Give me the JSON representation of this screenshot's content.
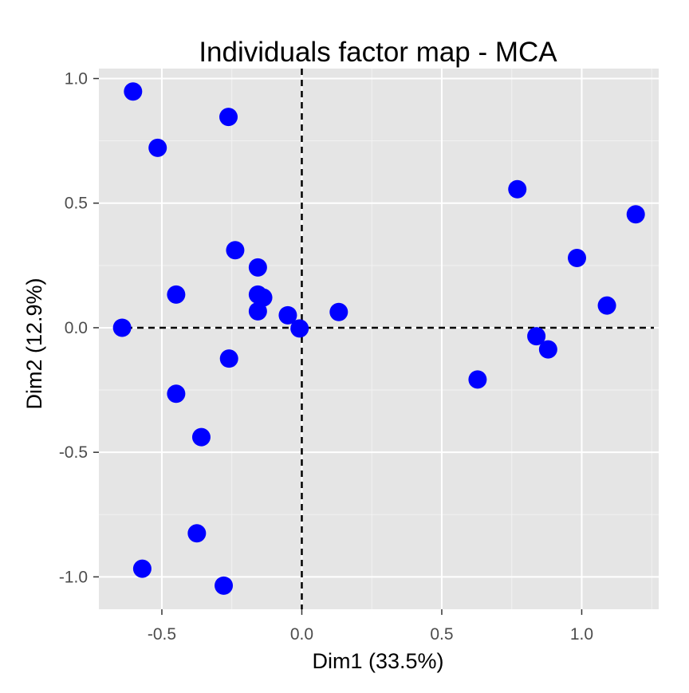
{
  "chart_data": {
    "type": "scatter",
    "title": "Individuals factor map - MCA",
    "xlabel": "Dim1 (33.5%)",
    "ylabel": "Dim2 (12.9%)",
    "xlim": [
      -0.725,
      1.275
    ],
    "ylim": [
      -1.13,
      1.04
    ],
    "x_ticks": [
      -0.5,
      0.0,
      0.5,
      1.0
    ],
    "x_tick_labels": [
      "-0.5",
      "0.0",
      "0.5",
      "1.0"
    ],
    "y_ticks": [
      -1.0,
      -0.5,
      0.0,
      0.5,
      1.0
    ],
    "y_tick_labels": [
      "-1.0",
      "-0.5",
      "0.0",
      "0.5",
      "1.0"
    ],
    "grid": true,
    "reference_lines": {
      "x": 0,
      "y": 0,
      "style": "dashed"
    },
    "colors": {
      "panel_background": "#e5e5e5",
      "grid_major": "#ffffff",
      "grid_minor": "#f2f2f2",
      "point": "#0000ff",
      "reference_line": "#000000"
    },
    "points": [
      {
        "x": -0.603,
        "y": 0.948
      },
      {
        "x": -0.515,
        "y": 0.722
      },
      {
        "x": -0.262,
        "y": 0.846
      },
      {
        "x": -0.238,
        "y": 0.311
      },
      {
        "x": -0.157,
        "y": 0.242
      },
      {
        "x": -0.157,
        "y": 0.133
      },
      {
        "x": -0.138,
        "y": 0.121
      },
      {
        "x": -0.157,
        "y": 0.066
      },
      {
        "x": -0.05,
        "y": 0.05
      },
      {
        "x": -0.449,
        "y": 0.133
      },
      {
        "x": -0.642,
        "y": 0.0
      },
      {
        "x": -0.008,
        "y": -0.003
      },
      {
        "x": 0.132,
        "y": 0.063
      },
      {
        "x": -0.26,
        "y": -0.124
      },
      {
        "x": -0.449,
        "y": -0.265
      },
      {
        "x": -0.359,
        "y": -0.439
      },
      {
        "x": -0.375,
        "y": -0.825
      },
      {
        "x": -0.57,
        "y": -0.967
      },
      {
        "x": -0.279,
        "y": -1.035
      },
      {
        "x": 0.628,
        "y": -0.208
      },
      {
        "x": 0.838,
        "y": -0.034
      },
      {
        "x": 0.88,
        "y": -0.087
      },
      {
        "x": 0.77,
        "y": 0.556
      },
      {
        "x": 0.983,
        "y": 0.28
      },
      {
        "x": 1.09,
        "y": 0.089
      },
      {
        "x": 1.193,
        "y": 0.455
      }
    ]
  }
}
